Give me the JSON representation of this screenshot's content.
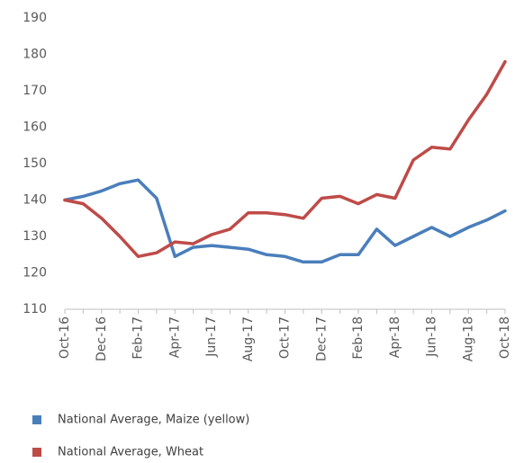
{
  "chart_data": {
    "type": "line",
    "categories": [
      "Oct-16",
      null,
      "Dec-16",
      null,
      "Feb-17",
      null,
      "Apr-17",
      null,
      "Jun-17",
      null,
      "Aug-17",
      null,
      "Oct-17",
      null,
      "Dec-17",
      null,
      "Feb-18",
      null,
      "Apr-18",
      null,
      "Jun-18",
      null,
      "Aug-18",
      null,
      "Oct-18"
    ],
    "series": [
      {
        "name": "National Average, Maize (yellow)",
        "color": "#4a7ebb",
        "values": [
          140,
          141,
          142.5,
          144.5,
          145.5,
          140.5,
          124.5,
          127,
          127.5,
          127,
          126.5,
          125,
          124.5,
          123,
          123,
          125,
          125,
          132,
          127.5,
          130,
          132.5,
          130,
          132.5,
          134.5,
          137
        ]
      },
      {
        "name": "National Average, Wheat",
        "color": "#be4b48",
        "values": [
          140,
          139,
          135,
          130,
          124.5,
          125.5,
          128.5,
          128,
          130.5,
          132,
          136.5,
          136.5,
          136,
          135,
          140.5,
          141,
          139,
          141.5,
          140.5,
          151,
          154.5,
          154,
          162,
          169,
          178
        ]
      }
    ],
    "ylim": [
      110,
      190
    ],
    "yticks": [
      110,
      120,
      130,
      140,
      150,
      160,
      170,
      180,
      190
    ],
    "grid": false,
    "legend": "bottom"
  }
}
